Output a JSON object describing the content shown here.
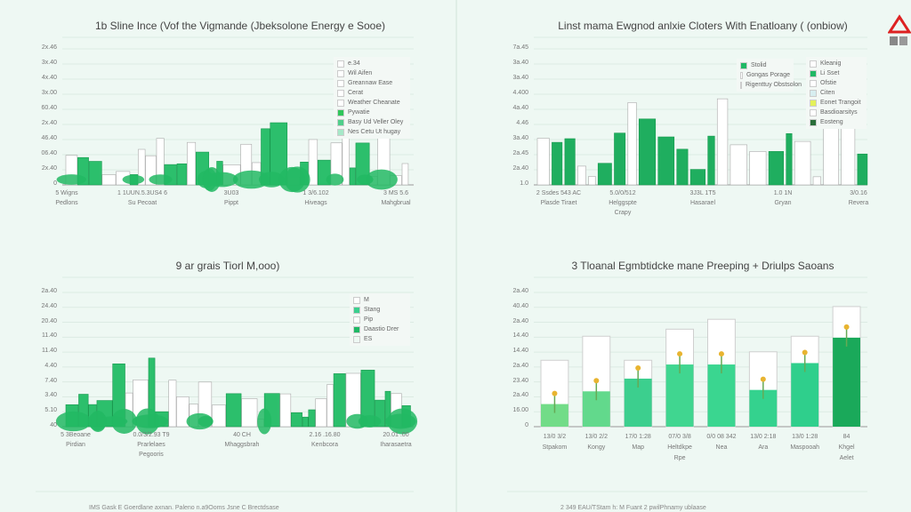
{
  "colors": {
    "accent": "#1fae5f",
    "light": "#7fe0a8",
    "grid": "#dcebe3",
    "outline": "#cfcfcf"
  },
  "charts": [
    {
      "title": "1b Sline Ince (Vof the Vigmande (Jbeksolone Energy e Sooe)",
      "yticks": [
        "2x.46",
        "3x.40",
        "4x.40",
        "3x.00",
        "60.40",
        "2x.40",
        "46.40",
        "06.40",
        "2x.40",
        "0"
      ],
      "xticks": [
        [
          "5 Wigns",
          "Pedlons"
        ],
        [
          "1 1UUN.5.3US4 6",
          "Su Pecoat"
        ],
        [
          "3U03",
          "Pippt"
        ],
        [
          "1 3/6.102",
          "Hiveags"
        ],
        [
          "3 MS 5.6",
          "Mahgbrual"
        ]
      ],
      "legend": [
        {
          "label": "e.34",
          "color": "#ffffff"
        },
        {
          "label": "Wil Aifen",
          "color": "#ffffff"
        },
        {
          "label": "Greannaw Ease",
          "color": "#ffffff"
        },
        {
          "label": "Cerat",
          "color": "#ffffff"
        },
        {
          "label": "Weather Cheanate",
          "color": "#ffffff"
        },
        {
          "label": "Pywatie",
          "color": "#2fc65a"
        },
        {
          "label": "Basy Ud Veller Oley",
          "color": "#4fcf8a"
        },
        {
          "label": "Nes Cetu Ut hugay",
          "color": "#a6e8c8"
        }
      ]
    },
    {
      "title": "Linst mama Ewgnod anlxie Cloters With Enatloany ( (onbiow)",
      "yticks": [
        "7a.45",
        "3a.40",
        "3a.40",
        "4.400",
        "4a.40",
        "4.46",
        "3a.40",
        "2a.45",
        "2a.40",
        "1.0"
      ],
      "xticks": [
        [
          "2 Ssdes 543 AC",
          "Plasde Tiraet"
        ],
        [
          "5.0/0/512",
          "Helggspte",
          "Crapy"
        ],
        [
          "3J3L 1T5",
          "Hasarael"
        ],
        [
          "1.0 1N",
          "Gryan"
        ],
        [
          "3/0.16",
          "Revera"
        ]
      ],
      "legend": [
        {
          "label": "Stolid",
          "color": "#1fb865"
        },
        {
          "label": "Gongas Porage",
          "color": "#ffffff"
        },
        {
          "label": "Rigenttuy Obstsolon",
          "color": "#8fdcae"
        }
      ],
      "legend2": [
        {
          "label": "Kleanig",
          "color": "#ffffff"
        },
        {
          "label": "Li Sset",
          "color": "#1fb865"
        },
        {
          "label": "Ofstie",
          "color": "#ffffff"
        },
        {
          "label": "Citen",
          "color": "#d7eef0"
        },
        {
          "label": "Eonet Trangoit",
          "color": "#e4f15a"
        },
        {
          "label": "Basdioarsitys",
          "color": "#ffffff"
        },
        {
          "label": "Eosteng",
          "color": "#2a6e3a"
        }
      ]
    },
    {
      "title": "9 ar grais Tiorl M,ooo)",
      "yticks": [
        "2a.40",
        "24.40",
        "20.40",
        "11.40",
        "11.40",
        "4.40",
        "7.40",
        "3.40",
        "5.10",
        "40"
      ],
      "xticks": [
        [
          "5 3Beoane",
          "Pirdian"
        ],
        [
          "0.0/3/2.93 T9",
          "Prarlelaes",
          "Pegooris"
        ],
        [
          "40 CH",
          "Mhaggsbrah"
        ],
        [
          "2.16 .16.80",
          "Kenbcora"
        ],
        [
          "20.01 .00",
          "Iharasaetra"
        ]
      ],
      "legend": [
        {
          "label": "M",
          "color": "#ffffff"
        },
        {
          "label": "Stang",
          "color": "#3ccf8e"
        },
        {
          "label": "Pip",
          "color": "#ffffff"
        },
        {
          "label": "Daastio Drer",
          "color": "#1fb865"
        },
        {
          "label": "ES",
          "color": "#eef8f3"
        }
      ],
      "footnote": "IMS Gask E Goerdlane axnan. Paleno n.a9Ooms Jsne C Brectdsase"
    },
    {
      "title": "3 Tloanal Egmbtidcke mane Preeping + Driulps Saoans",
      "yticks": [
        "2a.40",
        "40.40",
        "2a.40",
        "14.40",
        "14.40",
        "2a.40",
        "23.40",
        "2a.40",
        "16.00",
        "0"
      ],
      "footnote": "2 349 EAU/TStam h: M Fuant 2 pwilPhnamy ublaase",
      "chart_data": {
        "type": "bar",
        "ylim": [
          0,
          9.5
        ],
        "categories": [
          [
            "13/0 3/2",
            "Stpakom"
          ],
          [
            "13/0 2/2",
            "Kongy"
          ],
          [
            "17/0 1:28",
            "Map"
          ],
          [
            "07/0 3/8",
            "Heltdkpe",
            "Rpe"
          ],
          [
            "0/0 08 342",
            "Nea"
          ],
          [
            "13/0 2:18",
            "Ara"
          ],
          [
            "13/0 1:28",
            "Maspooah"
          ],
          [
            "84",
            "Khgel",
            "Aelet"
          ]
        ],
        "values": [
          1.6,
          2.5,
          3.4,
          4.4,
          4.4,
          2.6,
          4.5,
          6.3
        ],
        "totals": [
          4.7,
          6.4,
          4.7,
          6.9,
          7.6,
          5.3,
          6.4,
          8.5
        ],
        "colors": [
          "#72dc88",
          "#62d98c",
          "#3ccf8e",
          "#40d690",
          "#3ad690",
          "#34d28e",
          "#2fcf8c",
          "#1aa95a"
        ]
      }
    }
  ]
}
